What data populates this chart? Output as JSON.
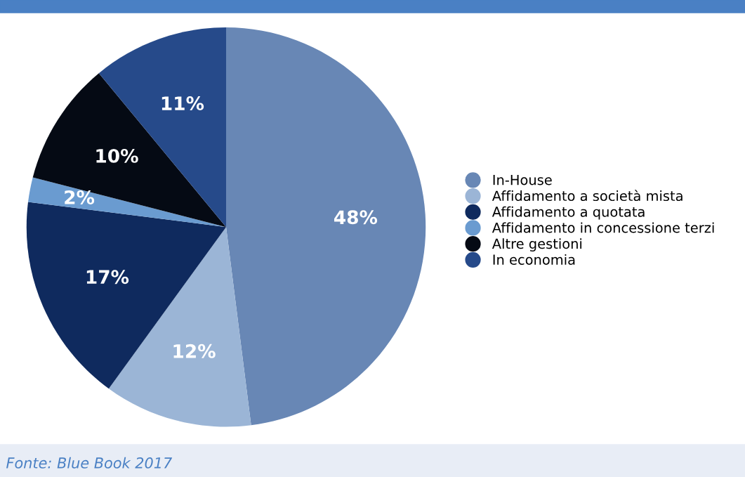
{
  "chart_data": {
    "type": "pie",
    "categories": [
      "In-House",
      "Affidamento a società mista",
      "Affidamento a quotata",
      "Affidamento in concessione terzi",
      "Altre gestioni",
      "In economia"
    ],
    "values": [
      48,
      12,
      17,
      2,
      10,
      11
    ],
    "colors": [
      "#6887b5",
      "#9bb5d6",
      "#0f2a5e",
      "#6a9bd0",
      "#050a14",
      "#264a8a"
    ],
    "value_labels": [
      "48%",
      "12%",
      "17%",
      "2%",
      "10%",
      "11%"
    ],
    "legend": "right",
    "annotations": [
      "Fonte: Blue Book 2017"
    ]
  }
}
